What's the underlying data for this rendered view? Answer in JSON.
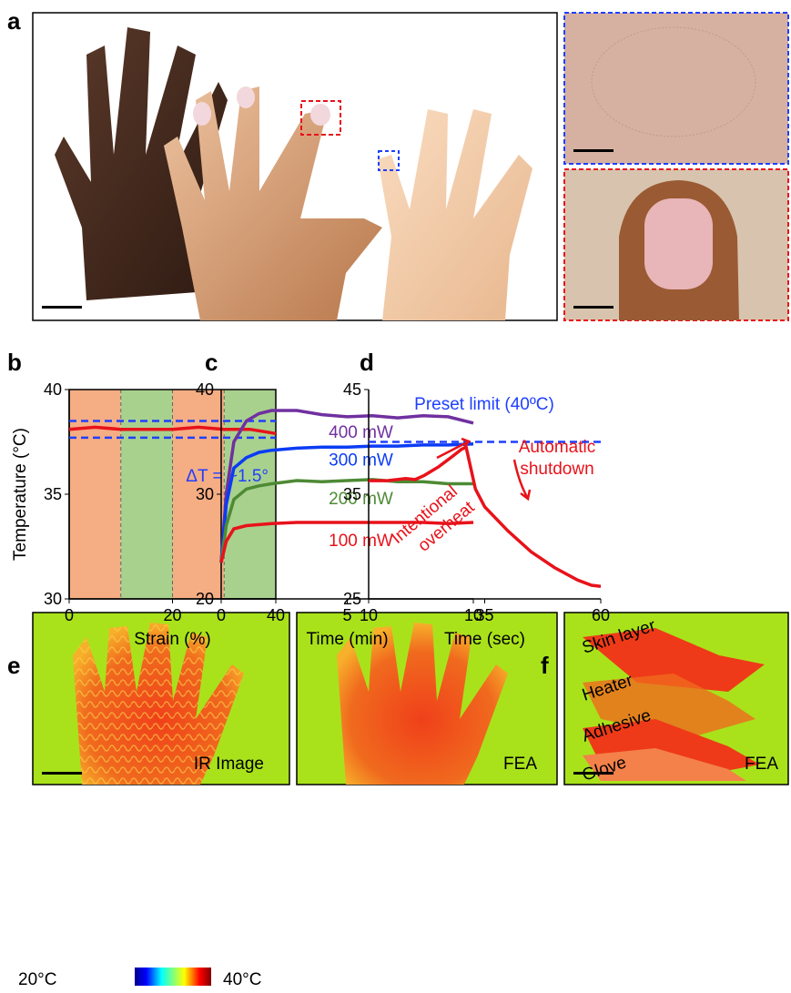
{
  "panels": [
    "a",
    "b",
    "c",
    "d",
    "e",
    "f"
  ],
  "images": {
    "ir_label": "IR Image",
    "fea_label_e": "FEA",
    "fea_label_f": "FEA",
    "layers": [
      "Skin layer",
      "Heater",
      "Adhesive",
      "Glove"
    ],
    "colorbar_min": "20°C",
    "colorbar_max": "40°C"
  },
  "chart_data": [
    {
      "type": "line",
      "xlabel": "Strain (%)",
      "ylabel": "Temperature (°C)",
      "xlim": [
        0,
        40
      ],
      "xticks": [
        0,
        20,
        40
      ],
      "ylim": [
        30,
        40
      ],
      "yticks": [
        30,
        35,
        40
      ],
      "bands": [
        {
          "from": 0,
          "to": 10,
          "color": "#f5ad84"
        },
        {
          "from": 10,
          "to": 20,
          "color": "#a9d18e"
        },
        {
          "from": 20,
          "to": 30,
          "color": "#f5ad84"
        },
        {
          "from": 30,
          "to": 40,
          "color": "#a9d18e"
        }
      ],
      "reference_lines": [
        {
          "value": 38.5,
          "color": "#1f3fff"
        },
        {
          "value": 37.7,
          "color": "#1f3fff"
        }
      ],
      "annotations": [
        "ΔT = ~1.5°"
      ],
      "series": [
        {
          "color": "#e8121a",
          "x": [
            0,
            5,
            10,
            15,
            20,
            25,
            30,
            35,
            40
          ],
          "values": [
            38.1,
            38.2,
            38.1,
            38.1,
            38.1,
            38.2,
            38.1,
            38.1,
            37.9
          ]
        }
      ]
    },
    {
      "type": "line",
      "xlabel": "Time (min)",
      "xlim": [
        0,
        10
      ],
      "xticks": [
        0,
        5,
        10
      ],
      "ylim": [
        20,
        40
      ],
      "yticks": [
        20,
        30,
        40
      ],
      "series": [
        {
          "name": "400 mW",
          "color": "#7030a0",
          "x": [
            0,
            0.2,
            0.5,
            1,
            1.5,
            2,
            3,
            4,
            5,
            6,
            7,
            8,
            9,
            10
          ],
          "values": [
            23.5,
            30,
            35,
            37,
            37.7,
            38,
            38,
            37.6,
            37.4,
            37.5,
            37.3,
            37.5,
            37.4,
            36.8
          ]
        },
        {
          "name": "300 mW",
          "color": "#0b3cf5",
          "x": [
            0,
            0.2,
            0.5,
            1,
            1.5,
            2,
            3,
            4,
            5,
            6,
            7,
            8,
            9,
            10
          ],
          "values": [
            23.5,
            29,
            32.5,
            33.5,
            34,
            34.2,
            34.4,
            34.5,
            34.5,
            34.6,
            34.6,
            34.7,
            34.7,
            34.8
          ]
        },
        {
          "name": "200 mW",
          "color": "#4e8a35",
          "x": [
            0,
            0.2,
            0.5,
            1,
            1.5,
            2,
            3,
            4,
            5,
            6,
            7,
            8,
            9,
            10
          ],
          "values": [
            23.5,
            27,
            29.5,
            30.5,
            30.8,
            31,
            31.3,
            31.2,
            31.3,
            31.4,
            31.2,
            31.2,
            31,
            31
          ]
        },
        {
          "name": "100 mW",
          "color": "#e8121a",
          "x": [
            0,
            0.2,
            0.5,
            1,
            1.5,
            2,
            3,
            4,
            5,
            6,
            7,
            8,
            9,
            10
          ],
          "values": [
            23.5,
            25.5,
            26.7,
            27,
            27.1,
            27.2,
            27.3,
            27.3,
            27.3,
            27.3,
            27.3,
            27.3,
            27.2,
            27.3
          ]
        }
      ]
    },
    {
      "type": "line",
      "xlabel": "Time (sec)",
      "xlim": [
        10,
        60
      ],
      "xticks": [
        10,
        35,
        60
      ],
      "ylim": [
        25,
        45
      ],
      "yticks": [
        25,
        35,
        45
      ],
      "reference_lines": [
        {
          "value": 40,
          "color": "#1f3fff"
        }
      ],
      "annotations": [
        "Preset limit (40ºC)",
        "Automatic",
        "shutdown",
        "Intentional",
        "overheat"
      ],
      "series": [
        {
          "color": "#e8121a",
          "x": [
            10,
            14,
            18,
            20,
            22,
            25,
            28,
            30,
            31,
            32,
            33,
            35,
            40,
            45,
            50,
            55,
            58,
            60
          ],
          "values": [
            36.3,
            36.3,
            36.5,
            36.4,
            36.8,
            37.6,
            38.6,
            39.3,
            39.5,
            37.5,
            35.5,
            33.8,
            31.5,
            29.5,
            28,
            26.8,
            26.3,
            26.2
          ]
        }
      ]
    }
  ]
}
